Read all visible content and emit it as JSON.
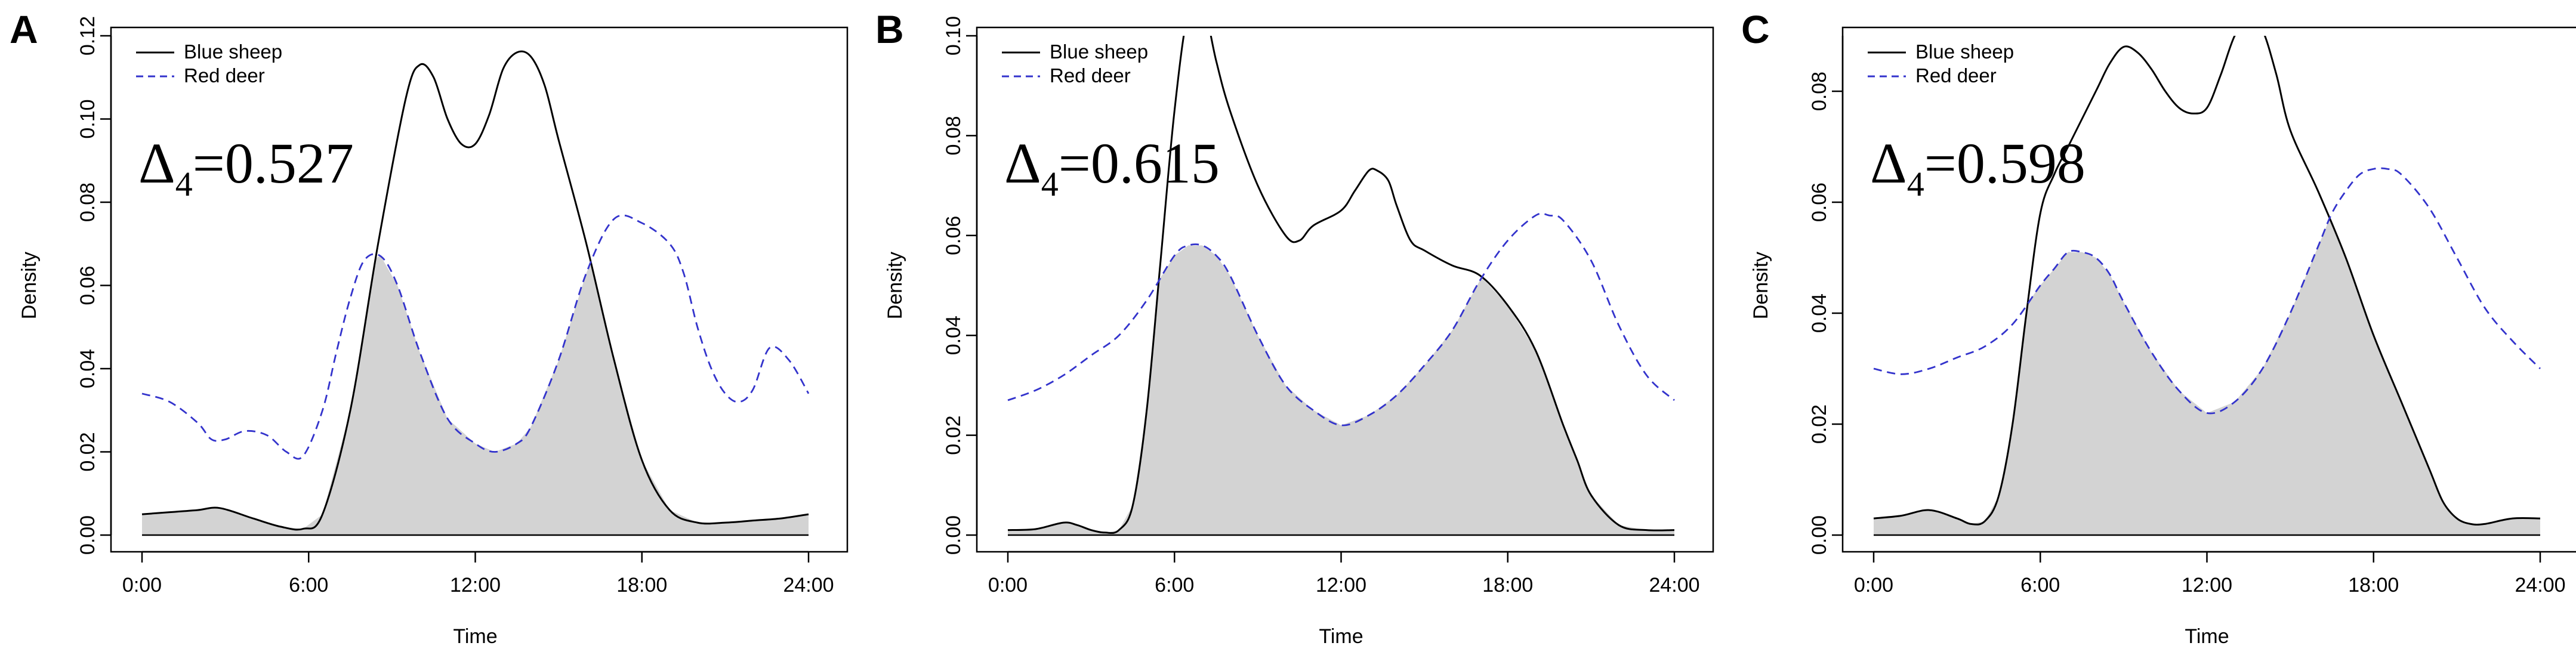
{
  "chart_data": [
    {
      "panel": "A",
      "type": "line",
      "xlabel": "Time",
      "ylabel": "Density",
      "x_ticks": [
        "0:00",
        "6:00",
        "12:00",
        "18:00",
        "24:00"
      ],
      "y_ticks": [
        "0.00",
        "0.02",
        "0.04",
        "0.06",
        "0.08",
        "0.10",
        "0.12"
      ],
      "xlim": [
        0,
        24
      ],
      "ylim": [
        0,
        0.12
      ],
      "overlap_label": "Δ",
      "overlap_subscript": "4",
      "overlap_value": "=0.527",
      "legend_position": "top-left",
      "shaded": "overlap",
      "series": [
        {
          "name": "Blue sheep",
          "style": "solid",
          "color": "#000000",
          "x": [
            0,
            1,
            2,
            2.8,
            4,
            5,
            5.8,
            6.5,
            7.5,
            8.5,
            9.5,
            10,
            10.5,
            11,
            11.5,
            12,
            12.5,
            13,
            13.5,
            14,
            14.5,
            15,
            16,
            17,
            18,
            19,
            20,
            21,
            22,
            23,
            24
          ],
          "y": [
            0.005,
            0.0055,
            0.006,
            0.0065,
            0.004,
            0.002,
            0.0015,
            0.005,
            0.03,
            0.07,
            0.105,
            0.113,
            0.11,
            0.1,
            0.094,
            0.094,
            0.101,
            0.112,
            0.116,
            0.115,
            0.108,
            0.095,
            0.07,
            0.042,
            0.018,
            0.006,
            0.003,
            0.003,
            0.0035,
            0.004,
            0.005
          ]
        },
        {
          "name": "Red deer",
          "style": "dashed",
          "color": "#3333cc",
          "x": [
            0,
            1,
            2,
            2.5,
            3,
            3.7,
            4.5,
            5.2,
            5.8,
            6.5,
            7,
            7.5,
            8,
            8.6,
            9.2,
            10,
            11,
            12,
            12.7,
            13.5,
            14,
            15,
            16,
            17,
            18,
            19,
            19.5,
            20,
            20.5,
            21,
            21.5,
            22,
            22.6,
            23.3,
            24
          ],
          "y": [
            0.034,
            0.032,
            0.027,
            0.023,
            0.023,
            0.025,
            0.024,
            0.02,
            0.019,
            0.03,
            0.044,
            0.057,
            0.066,
            0.067,
            0.06,
            0.044,
            0.028,
            0.022,
            0.02,
            0.022,
            0.026,
            0.042,
            0.063,
            0.076,
            0.075,
            0.07,
            0.063,
            0.05,
            0.04,
            0.034,
            0.032,
            0.035,
            0.045,
            0.042,
            0.034
          ]
        }
      ]
    },
    {
      "panel": "B",
      "type": "line",
      "xlabel": "Time",
      "ylabel": "Density",
      "x_ticks": [
        "0:00",
        "6:00",
        "12:00",
        "18:00",
        "24:00"
      ],
      "y_ticks": [
        "0.00",
        "0.02",
        "0.04",
        "0.06",
        "0.08",
        "0.10"
      ],
      "xlim": [
        0,
        24
      ],
      "ylim": [
        0,
        0.1
      ],
      "overlap_label": "Δ",
      "overlap_subscript": "4",
      "overlap_value": "=0.615",
      "legend_position": "top-left",
      "shaded": "overlap",
      "series": [
        {
          "name": "Blue sheep",
          "style": "solid",
          "color": "#000000",
          "x": [
            0,
            1,
            2,
            2.5,
            3,
            3.5,
            4,
            4.5,
            5,
            5.5,
            6,
            6.5,
            7,
            7.5,
            8,
            9,
            10,
            10.5,
            11,
            12,
            12.5,
            13,
            13.3,
            13.7,
            14,
            14.5,
            15,
            16,
            17,
            18,
            19,
            20,
            20.5,
            21,
            22,
            23,
            24
          ],
          "y": [
            0.001,
            0.0012,
            0.0025,
            0.002,
            0.001,
            0.0005,
            0.001,
            0.006,
            0.025,
            0.055,
            0.085,
            0.105,
            0.107,
            0.095,
            0.085,
            0.07,
            0.06,
            0.059,
            0.062,
            0.065,
            0.069,
            0.073,
            0.073,
            0.071,
            0.066,
            0.059,
            0.057,
            0.054,
            0.052,
            0.046,
            0.037,
            0.022,
            0.015,
            0.008,
            0.002,
            0.001,
            0.001
          ]
        },
        {
          "name": "Red deer",
          "style": "dashed",
          "color": "#3333cc",
          "x": [
            0,
            1,
            2,
            3,
            4,
            5,
            6,
            6.5,
            7,
            7.5,
            8,
            9,
            10,
            11,
            12,
            13,
            14,
            15,
            16,
            17,
            18,
            19,
            19.5,
            20,
            21,
            22,
            23,
            24
          ],
          "y": [
            0.027,
            0.029,
            0.032,
            0.036,
            0.04,
            0.047,
            0.056,
            0.058,
            0.058,
            0.056,
            0.052,
            0.04,
            0.03,
            0.025,
            0.022,
            0.024,
            0.028,
            0.034,
            0.041,
            0.051,
            0.059,
            0.064,
            0.064,
            0.063,
            0.055,
            0.042,
            0.032,
            0.027
          ]
        }
      ]
    },
    {
      "panel": "C",
      "type": "line",
      "xlabel": "Time",
      "ylabel": "Density",
      "x_ticks": [
        "0:00",
        "6:00",
        "12:00",
        "18:00",
        "24:00"
      ],
      "y_ticks": [
        "0.00",
        "0.02",
        "0.04",
        "0.06",
        "0.08"
      ],
      "xlim": [
        0,
        24
      ],
      "ylim": [
        0,
        0.09
      ],
      "overlap_label": "Δ",
      "overlap_subscript": "4",
      "overlap_value": "=0.598",
      "legend_position": "top-left",
      "shaded": "overlap",
      "series": [
        {
          "name": "Blue sheep",
          "style": "solid",
          "color": "#000000",
          "x": [
            0,
            1,
            2,
            3,
            3.5,
            4,
            4.5,
            5,
            5.5,
            6,
            6.5,
            7,
            8,
            8.5,
            9,
            9.5,
            10,
            10.5,
            11,
            11.5,
            12,
            12.5,
            13,
            13.5,
            14,
            14.5,
            15,
            16,
            17,
            18,
            19,
            20,
            20.5,
            21,
            21.5,
            22,
            23,
            24
          ],
          "y": [
            0.003,
            0.0035,
            0.0045,
            0.003,
            0.002,
            0.0025,
            0.007,
            0.02,
            0.04,
            0.058,
            0.065,
            0.07,
            0.08,
            0.085,
            0.088,
            0.087,
            0.084,
            0.08,
            0.077,
            0.076,
            0.077,
            0.083,
            0.09,
            0.093,
            0.091,
            0.083,
            0.073,
            0.062,
            0.05,
            0.036,
            0.024,
            0.012,
            0.006,
            0.003,
            0.002,
            0.002,
            0.003,
            0.003
          ]
        },
        {
          "name": "Red deer",
          "style": "dashed",
          "color": "#3333cc",
          "x": [
            0,
            1,
            2,
            3,
            4,
            5,
            6,
            6.5,
            7,
            7.5,
            8,
            8.5,
            9,
            10,
            11,
            12,
            13,
            14,
            15,
            16,
            16.5,
            17,
            17.5,
            18,
            18.5,
            19,
            20,
            21,
            22,
            23,
            24
          ],
          "y": [
            0.03,
            0.029,
            0.03,
            0.032,
            0.034,
            0.038,
            0.045,
            0.048,
            0.051,
            0.051,
            0.05,
            0.047,
            0.042,
            0.033,
            0.026,
            0.022,
            0.024,
            0.03,
            0.04,
            0.052,
            0.058,
            0.062,
            0.065,
            0.066,
            0.066,
            0.065,
            0.059,
            0.05,
            0.041,
            0.035,
            0.03
          ]
        }
      ]
    }
  ]
}
